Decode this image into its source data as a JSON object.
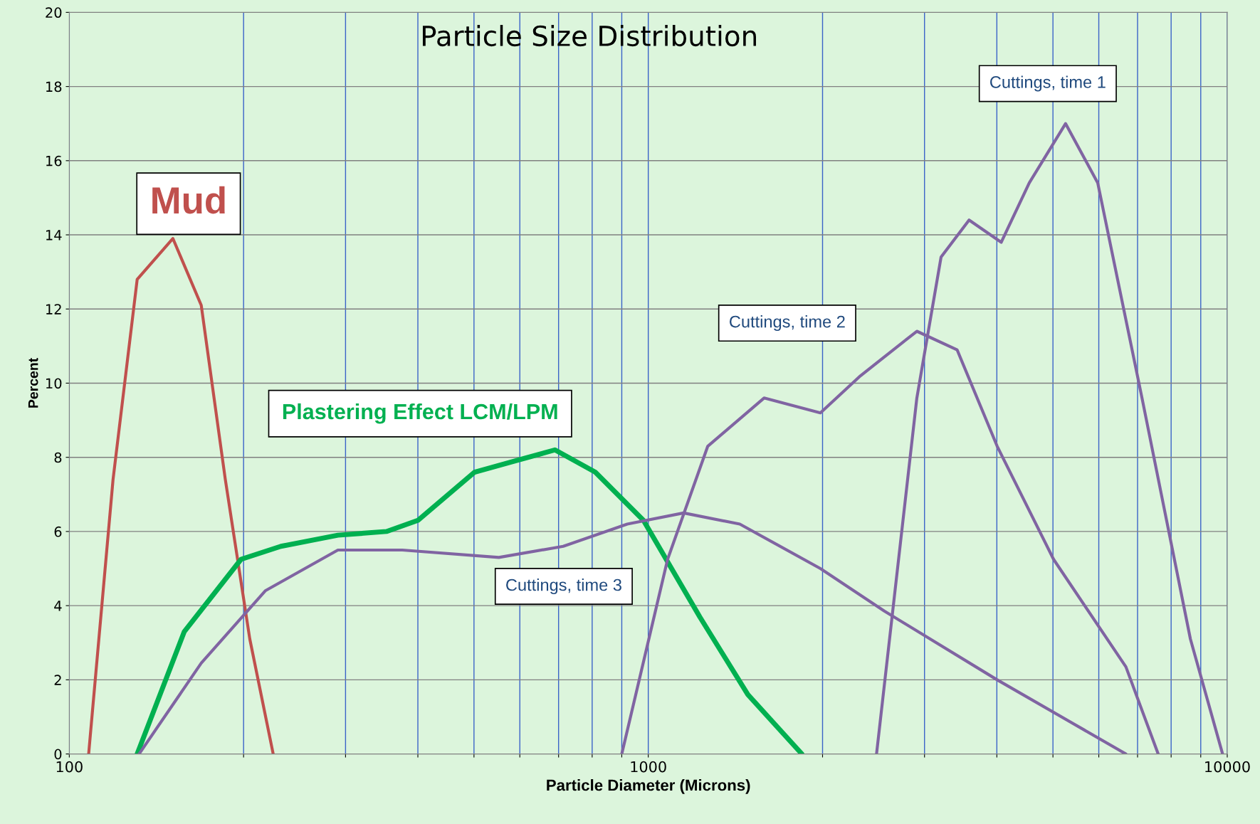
{
  "chart_data": {
    "type": "line",
    "title": "Particle Size Distribution",
    "xlabel": "Particle Diameter (Microns)",
    "ylabel": "Percent",
    "log": "x",
    "xlim": [
      100,
      10000
    ],
    "xticks": [
      100,
      {
        "value": 200,
        "label": null
      },
      {
        "value": 300,
        "label": null
      },
      {
        "value": 400,
        "label": null
      },
      {
        "value": 500,
        "label": null
      },
      {
        "value": 600,
        "label": null
      },
      {
        "value": 700,
        "label": null
      },
      {
        "value": 800,
        "label": null
      },
      {
        "value": 900,
        "label": null
      },
      1000,
      {
        "value": 2000,
        "label": null
      },
      {
        "value": 3000,
        "label": null
      },
      {
        "value": 4000,
        "label": null
      },
      {
        "value": 5000,
        "label": null
      },
      {
        "value": 6000,
        "label": null
      },
      {
        "value": 7000,
        "label": null
      },
      {
        "value": 8000,
        "label": null
      },
      {
        "value": 9000,
        "label": null
      },
      10000
    ],
    "ylim": [
      0,
      20
    ],
    "yticks": [
      0,
      2,
      4,
      6,
      8,
      10,
      12,
      14,
      16,
      18,
      20
    ],
    "grid": true,
    "series": [
      {
        "name": "Mud",
        "color": "#c0504d",
        "x": [
          108,
          119,
          131,
          151,
          169,
          186,
          205,
          225
        ],
        "values": [
          0,
          7.4,
          12.8,
          13.9,
          12.1,
          7.4,
          3.1,
          0
        ]
      },
      {
        "name": "Plastering Effect LCM/LPM",
        "color": "#00b050",
        "x": [
          131,
          158,
          198,
          232,
          291,
          353,
          400,
          501,
          588,
          690,
          810,
          981,
          1227,
          1486,
          1842
        ],
        "values": [
          0,
          3.3,
          5.25,
          5.6,
          5.9,
          6.0,
          6.3,
          7.6,
          7.9,
          8.2,
          7.6,
          6.3,
          3.7,
          1.6,
          0
        ]
      },
      {
        "name": "Cuttings, time 1",
        "color": "#8064a2",
        "x": [
          2479,
          2910,
          3204,
          3582,
          4071,
          4550,
          5258,
          5975,
          7125,
          8637,
          9817
        ],
        "values": [
          0,
          9.6,
          13.4,
          14.4,
          13.8,
          15.4,
          17.0,
          15.4,
          9.6,
          3.1,
          0
        ]
      },
      {
        "name": "Cuttings, time 2",
        "color": "#8064a2",
        "x": [
          900,
          1080,
          1267,
          1585,
          1983,
          2326,
          2910,
          3415,
          4005,
          5012,
          6683,
          7598
        ],
        "values": [
          0,
          5.25,
          8.3,
          9.6,
          9.2,
          10.2,
          11.4,
          10.9,
          8.3,
          5.25,
          2.35,
          0
        ]
      },
      {
        "name": "Cuttings, time 3",
        "color": "#8064a2",
        "x": [
          132,
          169,
          218,
          291,
          376,
          552,
          713,
          920,
          1151,
          1439,
          1983,
          2560,
          4005,
          6683
        ],
        "values": [
          0,
          2.45,
          4.4,
          5.5,
          5.5,
          5.3,
          5.6,
          6.2,
          6.5,
          6.2,
          5.0,
          3.85,
          2.0,
          0
        ]
      }
    ]
  }
}
